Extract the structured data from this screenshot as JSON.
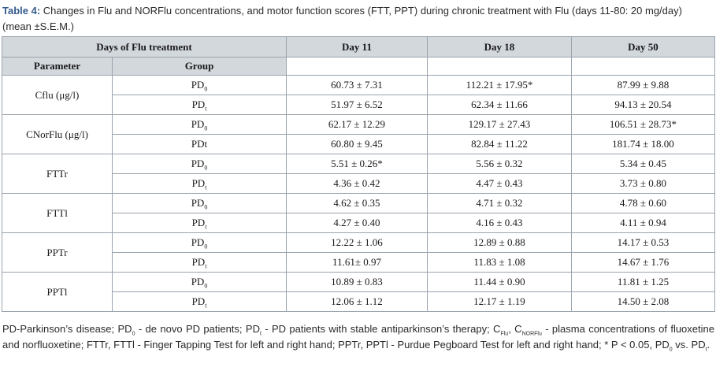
{
  "caption": {
    "label": "Table 4:",
    "text": " Changes in Flu and NORFlu concentrations, and motor function scores (FTT, PPT) during chronic treatment with Flu (days 11-80: 20 mg/day) (mean ±S.E.M.)"
  },
  "table": {
    "header": {
      "days_label": "Days of Flu treatment",
      "parameter_label": "Parameter",
      "group_label": "Group",
      "day_cols": [
        "Day 11",
        "Day 18",
        "Day 50"
      ]
    },
    "rows": [
      {
        "param": "Cflu (μg/l)",
        "groups": [
          {
            "base": "PD",
            "sub": "0",
            "values": [
              "60.73 ± 7.31",
              "112.21 ± 17.95*",
              "87.99 ± 9.88"
            ]
          },
          {
            "base": "PD",
            "sub": "t",
            "values": [
              "51.97 ± 6.52",
              "62.34 ± 11.66",
              "94.13 ± 20.54"
            ]
          }
        ]
      },
      {
        "param": "CNorFlu (μg/l)",
        "groups": [
          {
            "base": "PD",
            "sub": "0",
            "values": [
              "62.17 ± 12.29",
              "129.17 ± 27.43",
              "106.51 ± 28.73*"
            ]
          },
          {
            "base": "PDt",
            "sub": "",
            "values": [
              "60.80 ± 9.45",
              "82.84 ± 11.22",
              "181.74 ± 18.00"
            ]
          }
        ]
      },
      {
        "param": "FTTr",
        "groups": [
          {
            "base": "PD",
            "sub": "0",
            "values": [
              "5.51 ± 0.26*",
              "5.56 ± 0.32",
              "5.34 ± 0.45"
            ]
          },
          {
            "base": "PD",
            "sub": "t",
            "values": [
              "4.36 ± 0.42",
              "4.47 ± 0.43",
              "3.73 ± 0.80"
            ]
          }
        ]
      },
      {
        "param": "FTTl",
        "groups": [
          {
            "base": "PD",
            "sub": "0",
            "values": [
              "4.62 ± 0.35",
              "4.71 ± 0.32",
              "4.78 ± 0.60"
            ]
          },
          {
            "base": "PD",
            "sub": "t",
            "values": [
              "4.27 ± 0.40",
              "4.16 ± 0.43",
              "4.11 ± 0.94"
            ]
          }
        ]
      },
      {
        "param": "PPTr",
        "groups": [
          {
            "base": "PD",
            "sub": "0",
            "values": [
              "12.22 ± 1.06",
              "12.89 ± 0.88",
              "14.17 ± 0.53"
            ]
          },
          {
            "base": "PD",
            "sub": "t",
            "values": [
              "11.61± 0.97",
              "11.83 ± 1.08",
              "14.67 ± 1.76"
            ]
          }
        ]
      },
      {
        "param": "PPTl",
        "groups": [
          {
            "base": "PD",
            "sub": "0",
            "values": [
              "10.89 ± 0.83",
              "11.44 ± 0.90",
              "11.81 ± 1.25"
            ]
          },
          {
            "base": "PD",
            "sub": "t",
            "values": [
              "12.06 ± 1.12",
              "12.17 ± 1.19",
              "14.50 ± 2.08"
            ]
          }
        ]
      }
    ]
  },
  "footnote": {
    "t1": "PD-Parkinson’s disease; PD",
    "s1": "0",
    "t2": " - de novo PD patients; PD",
    "s2": "t",
    "t3": " - PD patients with stable antiparkinson’s therapy; C",
    "s3": "Flu",
    "t4": ", C",
    "s4": "NORFlu",
    "t5": " - plasma concentrations of fluoxetine and norfluoxetine; FTTr, FTTl - Finger Tapping Test for left and right hand; PPTr, PPTl - Purdue Pegboard Test for left and right hand; * P < 0.05, PD",
    "s5": "0",
    "t6": " vs. PD",
    "s6": "t",
    "t7": "."
  }
}
